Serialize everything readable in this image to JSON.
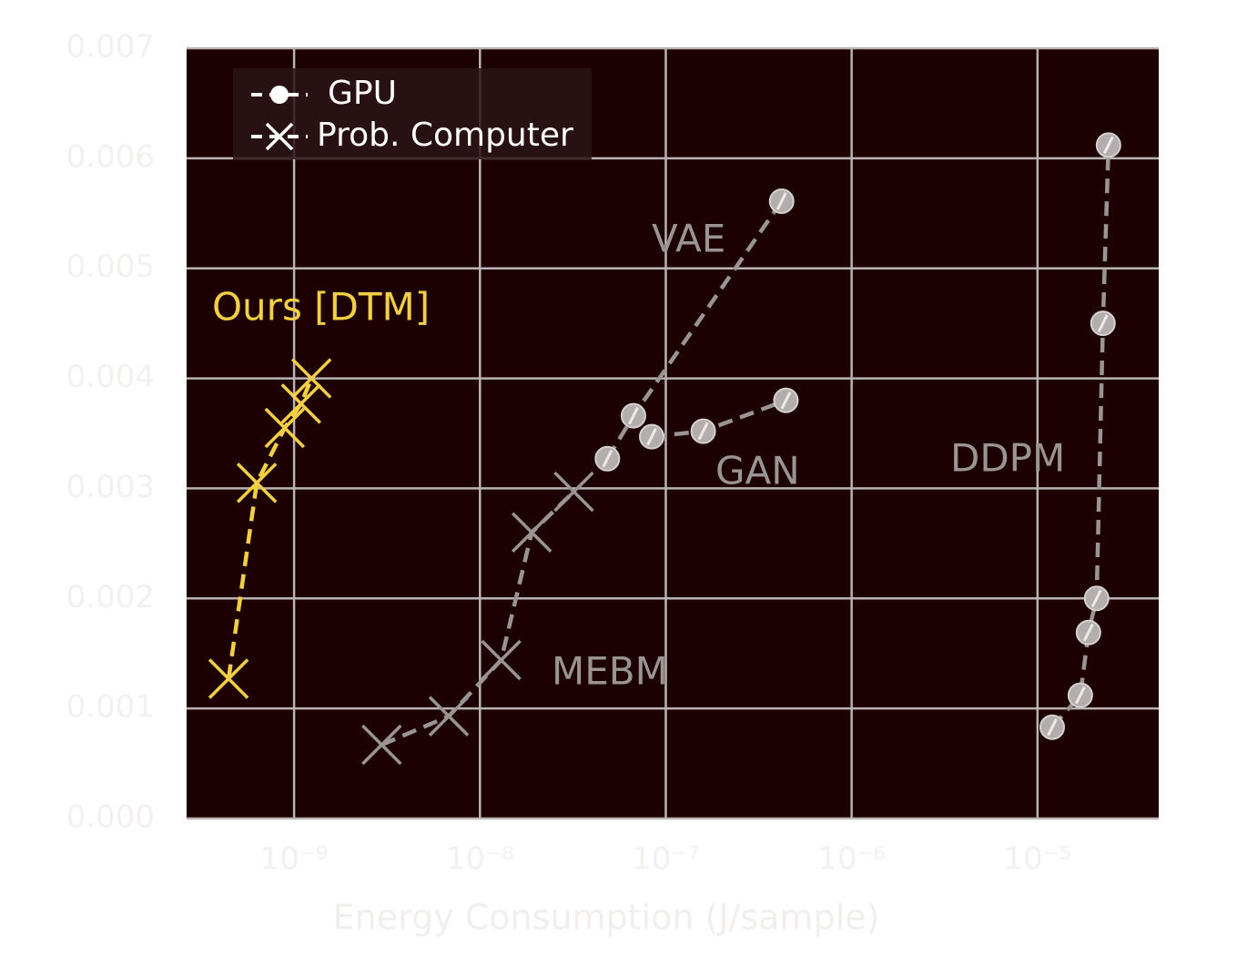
{
  "chart_data": {
    "type": "line",
    "x_label": "Energy Consumption (J/sample)",
    "xscale": "log",
    "xlim": [
      2.64e-10,
      4.49e-05
    ],
    "xticks": [
      {
        "value": 1e-09,
        "label": "10⁻⁹"
      },
      {
        "value": 1e-08,
        "label": "10⁻⁸"
      },
      {
        "value": 1e-07,
        "label": "10⁻⁷"
      },
      {
        "value": 1e-06,
        "label": "10⁻⁶"
      },
      {
        "value": 1e-05,
        "label": "10⁻⁵"
      }
    ],
    "ylim": [
      0,
      0.007
    ],
    "yticks": [
      {
        "value": 0,
        "label": "0.000"
      },
      {
        "value": 0.001,
        "label": "0.001"
      },
      {
        "value": 0.002,
        "label": "0.002"
      },
      {
        "value": 0.003,
        "label": "0.003"
      },
      {
        "value": 0.004,
        "label": "0.004"
      },
      {
        "value": 0.005,
        "label": "0.005"
      },
      {
        "value": 0.006,
        "label": "0.006"
      },
      {
        "value": 0.007,
        "label": "0.007"
      }
    ],
    "grid": true,
    "legend": {
      "position": "upper left",
      "entries": [
        {
          "label": "GPU",
          "marker": "circle"
        },
        {
          "label": "Prob. Computer",
          "marker": "x"
        }
      ]
    },
    "series": [
      {
        "name": "Ours [DTM]",
        "color": "#f2cf45",
        "marker": "x",
        "x": [
          4.44e-10,
          6.3e-10,
          8.9e-10,
          1.09e-09,
          1.24e-09
        ],
        "values": [
          0.00127,
          0.00305,
          0.00355,
          0.00377,
          0.004
        ]
      },
      {
        "name": "MEBM",
        "color": "#9b9494",
        "marker": "x",
        "x": [
          2.96e-09,
          6.8e-09,
          1.3e-08,
          1.9e-08,
          3.2e-08
        ],
        "values": [
          0.00067,
          0.00093,
          0.00144,
          0.0026,
          0.00297
        ]
      },
      {
        "name": "VAE",
        "color": "#9b9494",
        "marker": "circle",
        "x": [
          4.85e-08,
          6.7e-08,
          4.2e-07
        ],
        "values": [
          0.00327,
          0.00366,
          0.00561
        ]
      },
      {
        "name": "GAN",
        "color": "#9b9494",
        "marker": "circle",
        "x": [
          8.4e-08,
          1.59e-07,
          4.43e-07
        ],
        "values": [
          0.00347,
          0.00352,
          0.0038
        ]
      },
      {
        "name": "DDPM",
        "color": "#9b9494",
        "marker": "circle",
        "x": [
          1.2e-05,
          1.7e-05,
          1.88e-05,
          2.08e-05,
          2.25e-05,
          2.41e-05
        ],
        "values": [
          0.00083,
          0.00112,
          0.00169,
          0.002,
          0.0045,
          0.00612
        ]
      }
    ]
  }
}
